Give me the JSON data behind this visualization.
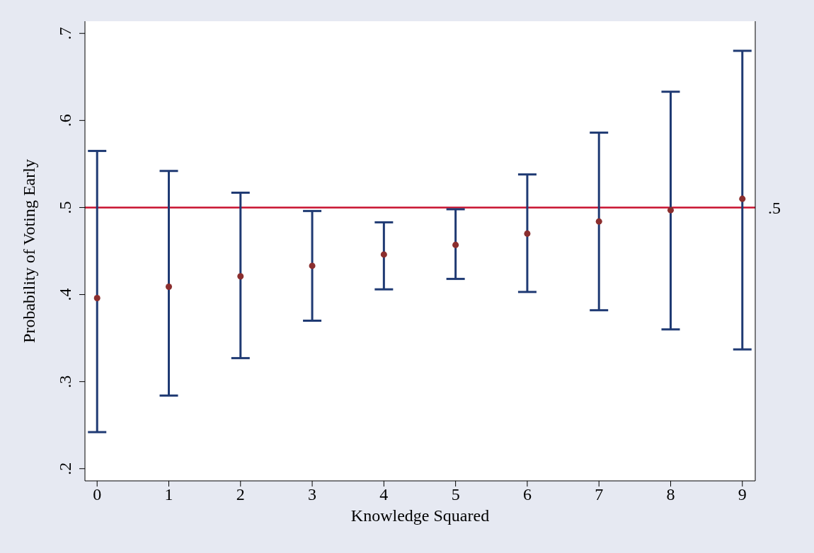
{
  "chart_data": {
    "type": "scatter",
    "xlabel": "Knowledge Squared",
    "ylabel": "Probability of Voting Early",
    "x": [
      0,
      1,
      2,
      3,
      4,
      5,
      6,
      7,
      8,
      9
    ],
    "series": [
      {
        "color": "#8b2e2e",
        "values": [
          0.396,
          0.409,
          0.421,
          0.433,
          0.446,
          0.457,
          0.47,
          0.484,
          0.497,
          0.51
        ],
        "errors": [
          [
            0.242,
            0.565
          ],
          [
            0.284,
            0.542
          ],
          [
            0.327,
            0.517
          ],
          [
            0.37,
            0.496
          ],
          [
            0.406,
            0.483
          ],
          [
            0.418,
            0.498
          ],
          [
            0.403,
            0.538
          ],
          [
            0.382,
            0.586
          ],
          [
            0.36,
            0.633
          ],
          [
            0.337,
            0.68
          ]
        ]
      }
    ],
    "xlim": [
      -0.17,
      9.18
    ],
    "xticks": [
      0,
      1,
      2,
      3,
      4,
      5,
      6,
      7,
      8,
      9
    ],
    "ylim": [
      0.186,
      0.714
    ],
    "yticks": [
      {
        "value": 0.2,
        "label": ".2"
      },
      {
        "value": 0.3,
        "label": ".3"
      },
      {
        "value": 0.4,
        "label": ".4"
      },
      {
        "value": 0.5,
        "label": ".5"
      },
      {
        "value": 0.6,
        "label": ".6"
      },
      {
        "value": 0.7,
        "label": ".7"
      }
    ],
    "ref_lines": [
      {
        "axis": "y",
        "value": 0.5,
        "color": "#c8102e",
        "label": ".5"
      }
    ],
    "marker": "circle",
    "grid": false,
    "legend": false
  }
}
